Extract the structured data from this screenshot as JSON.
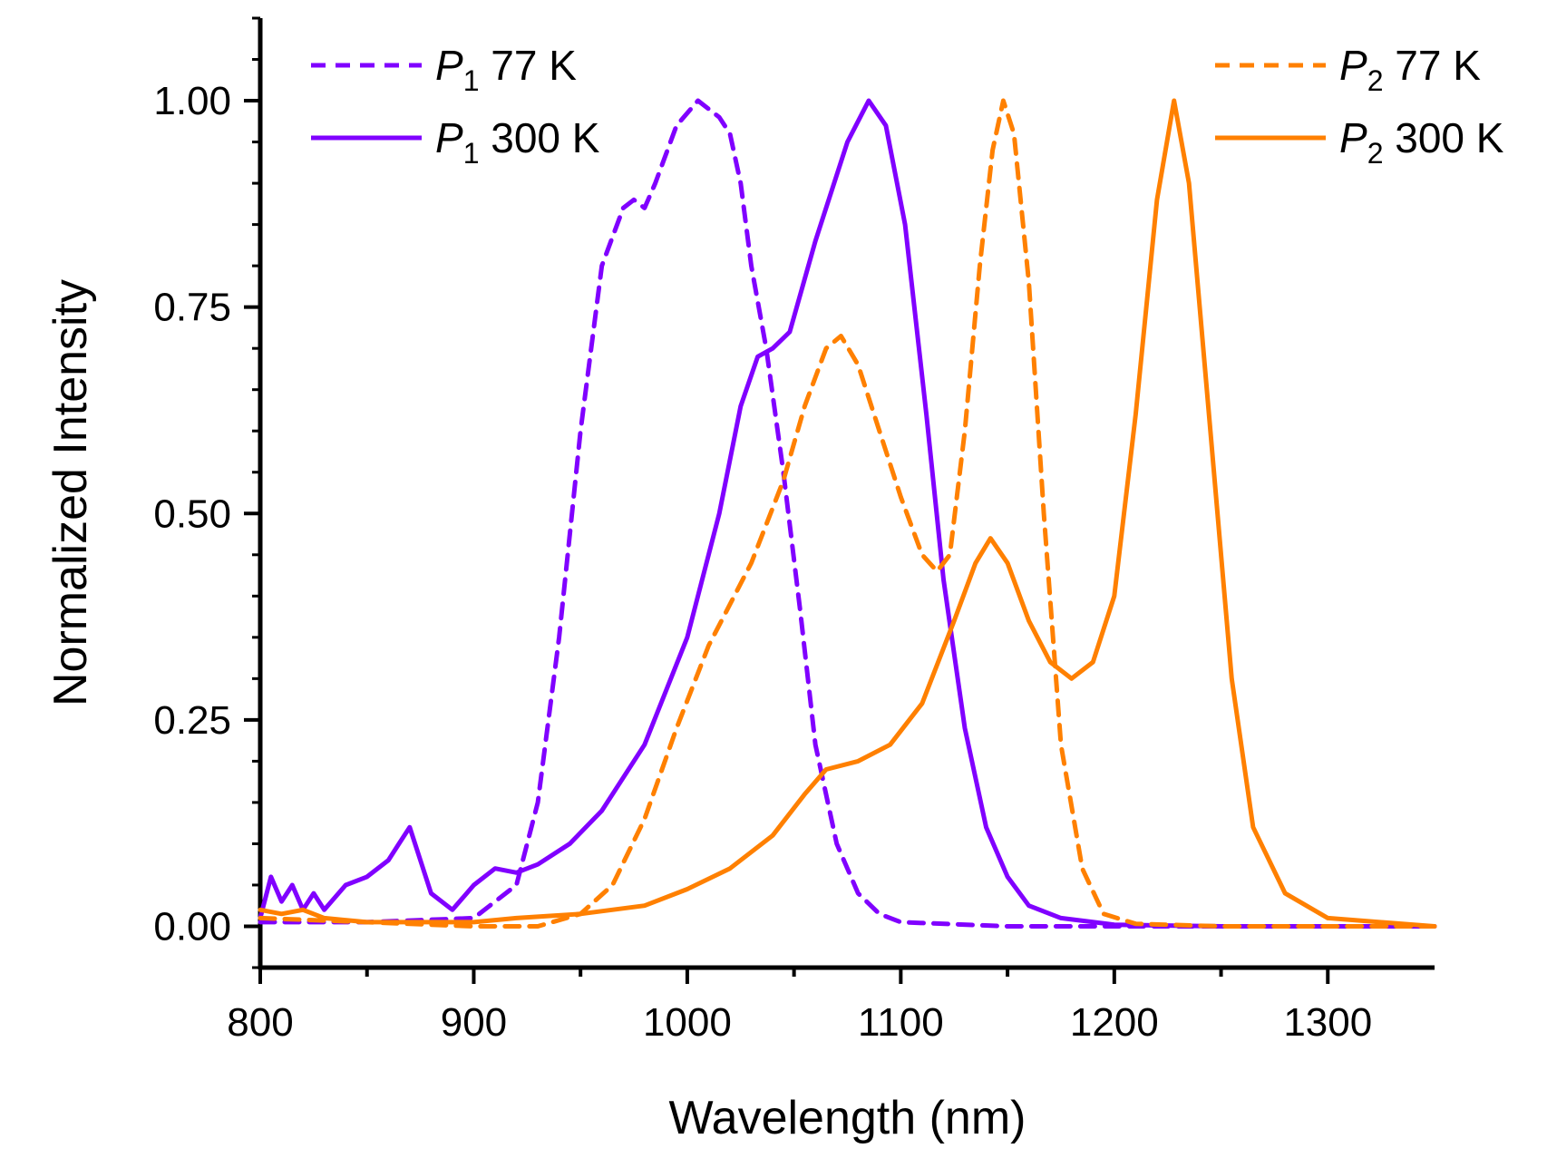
{
  "chart_data": {
    "type": "line",
    "title": "",
    "xlabel": "Wavelength (nm)",
    "ylabel": "Normalized Intensity",
    "xlim": [
      800,
      1350
    ],
    "ylim": [
      -0.05,
      1.1
    ],
    "x_ticks": [
      800,
      900,
      1000,
      1100,
      1200,
      1300
    ],
    "x_tick_labels": [
      "800",
      "900",
      "1000",
      "1100",
      "1200",
      "1300"
    ],
    "y_ticks": [
      0.0,
      0.25,
      0.5,
      0.75,
      1.0
    ],
    "y_tick_labels": [
      "0.00",
      "0.25",
      "0.50",
      "0.75",
      "1.00"
    ],
    "grid": false,
    "legend": [
      {
        "italic": "P",
        "sub": "1",
        "rest": " 77 K",
        "series_index": 0,
        "placement": "top-left-1"
      },
      {
        "italic": "P",
        "sub": "1",
        "rest": " 300 K",
        "series_index": 1,
        "placement": "top-left-2"
      },
      {
        "italic": "P",
        "sub": "2",
        "rest": " 77 K",
        "series_index": 2,
        "placement": "top-right-1"
      },
      {
        "italic": "P",
        "sub": "2",
        "rest": " 300 K",
        "series_index": 3,
        "placement": "top-right-2"
      }
    ],
    "series": [
      {
        "name": "P1 77 K",
        "color": "#8000ff",
        "dashed": true,
        "points": [
          [
            800,
            0.005
          ],
          [
            850,
            0.005
          ],
          [
            900,
            0.01
          ],
          [
            920,
            0.05
          ],
          [
            930,
            0.15
          ],
          [
            940,
            0.35
          ],
          [
            950,
            0.6
          ],
          [
            960,
            0.8
          ],
          [
            970,
            0.87
          ],
          [
            975,
            0.88
          ],
          [
            980,
            0.87
          ],
          [
            985,
            0.9
          ],
          [
            995,
            0.97
          ],
          [
            1005,
            1.0
          ],
          [
            1015,
            0.98
          ],
          [
            1020,
            0.96
          ],
          [
            1025,
            0.9
          ],
          [
            1030,
            0.8
          ],
          [
            1037,
            0.7
          ],
          [
            1045,
            0.55
          ],
          [
            1053,
            0.38
          ],
          [
            1060,
            0.22
          ],
          [
            1070,
            0.1
          ],
          [
            1080,
            0.04
          ],
          [
            1090,
            0.015
          ],
          [
            1100,
            0.005
          ],
          [
            1150,
            0.0
          ],
          [
            1200,
            0.0
          ],
          [
            1350,
            0.0
          ]
        ]
      },
      {
        "name": "P1 300 K",
        "color": "#8000ff",
        "dashed": false,
        "points": [
          [
            800,
            0.01
          ],
          [
            805,
            0.06
          ],
          [
            810,
            0.03
          ],
          [
            815,
            0.05
          ],
          [
            820,
            0.02
          ],
          [
            825,
            0.04
          ],
          [
            830,
            0.02
          ],
          [
            840,
            0.05
          ],
          [
            850,
            0.06
          ],
          [
            860,
            0.08
          ],
          [
            865,
            0.1
          ],
          [
            870,
            0.12
          ],
          [
            875,
            0.08
          ],
          [
            880,
            0.04
          ],
          [
            890,
            0.02
          ],
          [
            900,
            0.05
          ],
          [
            910,
            0.07
          ],
          [
            920,
            0.065
          ],
          [
            930,
            0.075
          ],
          [
            945,
            0.1
          ],
          [
            960,
            0.14
          ],
          [
            980,
            0.22
          ],
          [
            1000,
            0.35
          ],
          [
            1015,
            0.5
          ],
          [
            1025,
            0.63
          ],
          [
            1033,
            0.69
          ],
          [
            1040,
            0.7
          ],
          [
            1048,
            0.72
          ],
          [
            1060,
            0.83
          ],
          [
            1075,
            0.95
          ],
          [
            1085,
            1.0
          ],
          [
            1093,
            0.97
          ],
          [
            1102,
            0.85
          ],
          [
            1112,
            0.62
          ],
          [
            1120,
            0.42
          ],
          [
            1130,
            0.24
          ],
          [
            1140,
            0.12
          ],
          [
            1150,
            0.06
          ],
          [
            1160,
            0.025
          ],
          [
            1175,
            0.01
          ],
          [
            1200,
            0.002
          ],
          [
            1250,
            0.0
          ],
          [
            1350,
            0.0
          ]
        ]
      },
      {
        "name": "P2 77 K",
        "color": "#ff8000",
        "dashed": true,
        "points": [
          [
            800,
            0.01
          ],
          [
            900,
            0.0
          ],
          [
            930,
            0.0
          ],
          [
            950,
            0.015
          ],
          [
            965,
            0.05
          ],
          [
            980,
            0.13
          ],
          [
            995,
            0.24
          ],
          [
            1010,
            0.34
          ],
          [
            1030,
            0.44
          ],
          [
            1045,
            0.54
          ],
          [
            1055,
            0.63
          ],
          [
            1065,
            0.7
          ],
          [
            1072,
            0.715
          ],
          [
            1080,
            0.68
          ],
          [
            1090,
            0.6
          ],
          [
            1100,
            0.52
          ],
          [
            1110,
            0.45
          ],
          [
            1117,
            0.43
          ],
          [
            1123,
            0.45
          ],
          [
            1130,
            0.6
          ],
          [
            1137,
            0.8
          ],
          [
            1143,
            0.94
          ],
          [
            1148,
            1.0
          ],
          [
            1153,
            0.96
          ],
          [
            1160,
            0.78
          ],
          [
            1167,
            0.5
          ],
          [
            1175,
            0.22
          ],
          [
            1185,
            0.07
          ],
          [
            1195,
            0.015
          ],
          [
            1210,
            0.003
          ],
          [
            1250,
            0.0
          ],
          [
            1350,
            0.0
          ]
        ]
      },
      {
        "name": "P2 300 K",
        "color": "#ff8000",
        "dashed": false,
        "points": [
          [
            800,
            0.02
          ],
          [
            810,
            0.015
          ],
          [
            820,
            0.02
          ],
          [
            830,
            0.01
          ],
          [
            850,
            0.005
          ],
          [
            880,
            0.005
          ],
          [
            900,
            0.005
          ],
          [
            920,
            0.01
          ],
          [
            950,
            0.015
          ],
          [
            980,
            0.025
          ],
          [
            1000,
            0.045
          ],
          [
            1020,
            0.07
          ],
          [
            1040,
            0.11
          ],
          [
            1055,
            0.16
          ],
          [
            1065,
            0.19
          ],
          [
            1080,
            0.2
          ],
          [
            1095,
            0.22
          ],
          [
            1110,
            0.27
          ],
          [
            1125,
            0.37
          ],
          [
            1135,
            0.44
          ],
          [
            1142,
            0.47
          ],
          [
            1150,
            0.44
          ],
          [
            1160,
            0.37
          ],
          [
            1170,
            0.32
          ],
          [
            1180,
            0.3
          ],
          [
            1190,
            0.32
          ],
          [
            1200,
            0.4
          ],
          [
            1210,
            0.62
          ],
          [
            1220,
            0.88
          ],
          [
            1228,
            1.0
          ],
          [
            1235,
            0.9
          ],
          [
            1245,
            0.6
          ],
          [
            1255,
            0.3
          ],
          [
            1265,
            0.12
          ],
          [
            1280,
            0.04
          ],
          [
            1300,
            0.01
          ],
          [
            1350,
            0.0
          ]
        ]
      }
    ]
  }
}
